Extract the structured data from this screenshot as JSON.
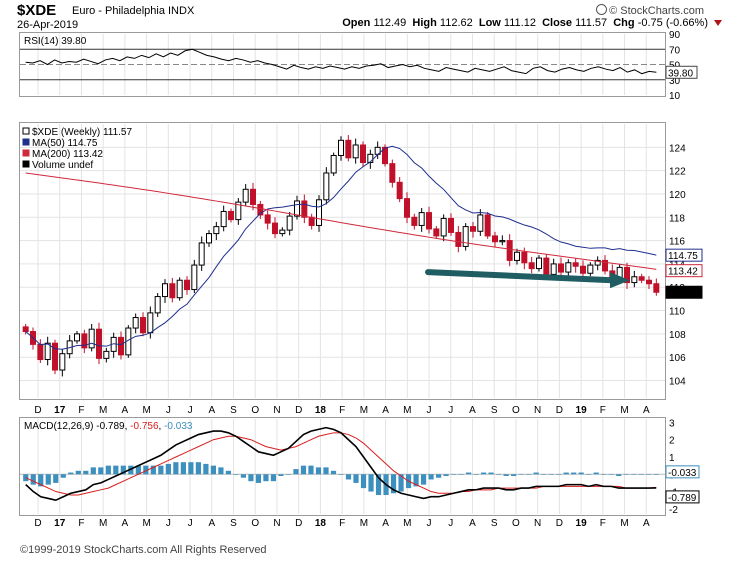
{
  "header": {
    "symbol": "$XDE",
    "description": "Euro - Philadelphia INDX",
    "date": "26-Apr-2019",
    "brand": "© StockCharts.com",
    "open_label": "Open",
    "open": "112.49",
    "high_label": "High",
    "high": "112.62",
    "low_label": "Low",
    "low": "111.12",
    "close_label": "Close",
    "close": "111.57",
    "chg_label": "Chg",
    "chg": "-0.75 (-0.66%)"
  },
  "footer": {
    "copyright": "©1999-2019 StockCharts.com All Rights Reserved"
  },
  "colors": {
    "up_candle": "#000000",
    "down_candle": "#c0102a",
    "ma50": "#1e2f8e",
    "ma200": "#d0283c",
    "rsi_line": "#000000",
    "rsi_fill": "#2f7d3a",
    "macd_line": "#000000",
    "signal_line": "#d81e1e",
    "hist": "#3d8fbe",
    "annotation_arrow": "#1f5d63",
    "grid": "#e3e3e3"
  },
  "chart_data": [
    {
      "panel": "rsi",
      "type": "line",
      "legend": "RSI(14) 39.80",
      "series": [
        {
          "name": "RSI(14)",
          "values": [
            53,
            52,
            55,
            50,
            56,
            52,
            54,
            53,
            57,
            54,
            51,
            56,
            58,
            55,
            60,
            58,
            62,
            59,
            64,
            60,
            65,
            62,
            68,
            70,
            66,
            62,
            60,
            57,
            55,
            58,
            56,
            53,
            55,
            52,
            50,
            47,
            44,
            49,
            46,
            44,
            47,
            45,
            48,
            46,
            44,
            47,
            45,
            48,
            49,
            51,
            46,
            48,
            50,
            47,
            49,
            45,
            43,
            41,
            46,
            44,
            42,
            40,
            45,
            43,
            41,
            44,
            47,
            42,
            40,
            38,
            45,
            47,
            42,
            40,
            44,
            46,
            43,
            41,
            45,
            47,
            44,
            42,
            46,
            40,
            43,
            38,
            41,
            39.8
          ]
        }
      ],
      "ylim": [
        10,
        90
      ],
      "ticks": [
        "90",
        "70",
        "50",
        "30",
        "10"
      ],
      "reference_lines": [
        70,
        50,
        30
      ],
      "last_value_label": "39.80"
    },
    {
      "panel": "price",
      "type": "candlestick",
      "legend": [
        "$XDE (Weekly) 111.57",
        "MA(50) 114.75",
        "MA(200) 113.42",
        "Volume undef"
      ],
      "ylim": [
        102.5,
        126
      ],
      "y_ticks": [
        "124",
        "122",
        "120",
        "118",
        "116",
        "114",
        "112",
        "110",
        "108",
        "106",
        "104"
      ],
      "x_labels": [
        "D",
        "17",
        "F",
        "M",
        "A",
        "M",
        "J",
        "J",
        "A",
        "S",
        "O",
        "N",
        "D",
        "18",
        "F",
        "M",
        "A",
        "M",
        "J",
        "J",
        "A",
        "S",
        "O",
        "N",
        "D",
        "19",
        "F",
        "M",
        "A"
      ],
      "closes": [
        108.2,
        107.1,
        105.8,
        107.2,
        104.9,
        106.3,
        107.4,
        108.0,
        106.8,
        108.4,
        105.9,
        106.5,
        107.7,
        106.2,
        108.5,
        109.4,
        108.1,
        109.8,
        111.2,
        112.3,
        111.1,
        112.6,
        111.8,
        113.9,
        115.8,
        116.6,
        117.2,
        118.5,
        117.8,
        119.3,
        120.4,
        119.1,
        118.2,
        117.5,
        116.6,
        116.9,
        118.1,
        119.4,
        118.0,
        117.3,
        119.5,
        121.8,
        123.3,
        124.6,
        123.1,
        124.2,
        122.7,
        123.4,
        124.0,
        122.6,
        121.0,
        119.6,
        118.0,
        117.3,
        118.4,
        117.0,
        116.4,
        117.9,
        116.7,
        115.5,
        117.2,
        116.8,
        118.2,
        116.4,
        115.9,
        116.0,
        114.3,
        115.0,
        114.1,
        113.6,
        114.5,
        113.1,
        114.0,
        113.3,
        114.1,
        113.8,
        113.2,
        113.9,
        114.3,
        113.4,
        112.8,
        113.7,
        112.4,
        112.9,
        112.6,
        112.3,
        111.57
      ],
      "ma50_last": 114.75,
      "ma200_last": 113.42,
      "last_value_labels": [
        "114.75",
        "113.42",
        "111.57"
      ],
      "annotation": "arrow pointing right under prices near 112.5"
    },
    {
      "panel": "macd",
      "type": "line",
      "legend_prefix": "MACD(12,26,9)",
      "legend_values": [
        "-0.789",
        "-0.756",
        "-0.033"
      ],
      "series": [
        {
          "name": "MACD",
          "values": [
            -0.6,
            -1.0,
            -1.3,
            -1.4,
            -1.5,
            -1.3,
            -1.1,
            -1.0,
            -0.9,
            -0.6,
            -0.5,
            -0.3,
            -0.1,
            0.1,
            0.3,
            0.5,
            0.7,
            0.9,
            1.1,
            1.4,
            1.7,
            1.9,
            2.1,
            2.3,
            2.4,
            2.5,
            2.5,
            2.4,
            2.2,
            1.9,
            1.6,
            1.3,
            1.2,
            1.1,
            1.3,
            1.5,
            1.9,
            2.3,
            2.5,
            2.6,
            2.7,
            2.6,
            2.4,
            2.0,
            1.6,
            1.0,
            0.4,
            -0.2,
            -0.6,
            -0.9,
            -1.1,
            -1.2,
            -1.3,
            -1.4,
            -1.3,
            -1.3,
            -1.2,
            -1.1,
            -1.0,
            -0.9,
            -0.9,
            -0.8,
            -0.8,
            -0.8,
            -0.9,
            -0.9,
            -0.8,
            -0.8,
            -0.7,
            -0.7,
            -0.7,
            -0.7,
            -0.6,
            -0.6,
            -0.6,
            -0.7,
            -0.6,
            -0.7,
            -0.7,
            -0.8,
            -0.8,
            -0.8,
            -0.8,
            -0.8,
            -0.789
          ]
        },
        {
          "name": "Signal",
          "values": [
            -0.2,
            -0.4,
            -0.6,
            -0.8,
            -1.0,
            -1.1,
            -1.2,
            -1.2,
            -1.1,
            -1.0,
            -0.9,
            -0.8,
            -0.6,
            -0.4,
            -0.2,
            0.0,
            0.2,
            0.4,
            0.6,
            0.8,
            1.0,
            1.2,
            1.4,
            1.6,
            1.8,
            2.0,
            2.1,
            2.2,
            2.2,
            2.1,
            2.0,
            1.8,
            1.6,
            1.5,
            1.4,
            1.5,
            1.6,
            1.8,
            2.0,
            2.2,
            2.3,
            2.4,
            2.4,
            2.3,
            2.1,
            1.8,
            1.4,
            1.0,
            0.6,
            0.2,
            -0.1,
            -0.4,
            -0.6,
            -0.8,
            -1.0,
            -1.1,
            -1.1,
            -1.1,
            -1.0,
            -1.0,
            -0.9,
            -0.9,
            -0.9,
            -0.8,
            -0.8,
            -0.8,
            -0.8,
            -0.8,
            -0.8,
            -0.7,
            -0.7,
            -0.7,
            -0.7,
            -0.7,
            -0.7,
            -0.7,
            -0.7,
            -0.7,
            -0.7,
            -0.7,
            -0.8,
            -0.8,
            -0.8,
            -0.8,
            -0.756
          ]
        },
        {
          "name": "Histogram",
          "values": [
            -0.4,
            -0.6,
            -0.7,
            -0.6,
            -0.5,
            -0.2,
            0.1,
            0.2,
            0.2,
            0.4,
            0.4,
            0.5,
            0.5,
            0.5,
            0.5,
            0.5,
            0.5,
            0.5,
            0.5,
            0.6,
            0.7,
            0.7,
            0.7,
            0.7,
            0.6,
            0.5,
            0.4,
            0.2,
            0.0,
            -0.2,
            -0.4,
            -0.5,
            -0.4,
            -0.4,
            -0.1,
            0.0,
            0.3,
            0.5,
            0.5,
            0.4,
            0.4,
            0.2,
            0.0,
            -0.3,
            -0.5,
            -0.8,
            -1.0,
            -1.2,
            -1.2,
            -1.1,
            -1.0,
            -0.8,
            -0.7,
            -0.6,
            -0.3,
            -0.2,
            -0.1,
            0.0,
            0.0,
            0.1,
            0.0,
            0.1,
            0.1,
            0.0,
            -0.1,
            -0.1,
            0.0,
            0.0,
            0.1,
            0.0,
            0.0,
            0.0,
            0.1,
            0.1,
            0.1,
            0.0,
            0.1,
            0.0,
            0.0,
            -0.1,
            0.0,
            0.0,
            0.0,
            0.0,
            -0.033
          ]
        }
      ],
      "ylim": [
        -2.3,
        3.2
      ],
      "y_ticks": [
        "3",
        "2",
        "1",
        "0",
        "-1",
        "-2"
      ],
      "last_value_labels": [
        "-0.033",
        "-0.789"
      ],
      "x_labels": [
        "D",
        "17",
        "F",
        "M",
        "A",
        "M",
        "J",
        "J",
        "A",
        "S",
        "O",
        "N",
        "D",
        "18",
        "F",
        "M",
        "A",
        "M",
        "J",
        "J",
        "A",
        "S",
        "O",
        "N",
        "D",
        "19",
        "F",
        "M",
        "A"
      ]
    }
  ]
}
